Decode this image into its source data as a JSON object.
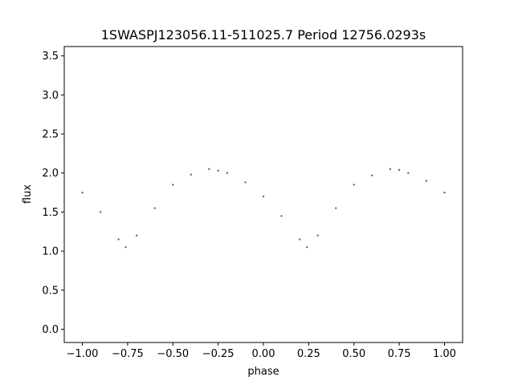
{
  "chart_data": {
    "type": "scatter",
    "title": "1SWASPJ123056.11-511025.7 Period 12756.0293s",
    "xlabel": "phase",
    "ylabel": "flux",
    "xlim": [
      -1.1,
      1.1
    ],
    "ylim": [
      -0.17,
      3.62
    ],
    "xticks": [
      -1.0,
      -0.75,
      -0.5,
      -0.25,
      0.0,
      0.25,
      0.5,
      0.75,
      1.0
    ],
    "xtick_labels": [
      "−1.00",
      "−0.75",
      "−0.50",
      "−0.25",
      "0.00",
      "0.25",
      "0.50",
      "0.75",
      "1.00"
    ],
    "yticks": [
      0.0,
      0.5,
      1.0,
      1.5,
      2.0,
      2.5,
      3.0,
      3.5
    ],
    "ytick_labels": [
      "0.0",
      "0.5",
      "1.0",
      "1.5",
      "2.0",
      "2.5",
      "3.0",
      "3.5"
    ],
    "grid": false,
    "legend": "none",
    "marker_color": "#1f77b4",
    "series": [
      {
        "x": [
          -1.0,
          -0.9,
          -0.8,
          -0.76,
          -0.7,
          -0.6,
          -0.5,
          -0.4,
          -0.3,
          -0.25,
          -0.2,
          -0.1,
          0.0,
          0.1,
          0.2,
          0.24,
          0.3,
          0.4,
          0.5,
          0.6,
          0.7,
          0.75,
          0.8,
          0.9,
          1.0
        ],
        "y": [
          1.75,
          1.5,
          1.15,
          1.05,
          1.2,
          1.55,
          1.85,
          1.98,
          2.05,
          2.03,
          2.0,
          1.88,
          1.7,
          1.45,
          1.15,
          1.05,
          1.2,
          1.55,
          1.85,
          1.97,
          2.05,
          2.04,
          2.0,
          1.9,
          1.75
        ]
      }
    ]
  }
}
